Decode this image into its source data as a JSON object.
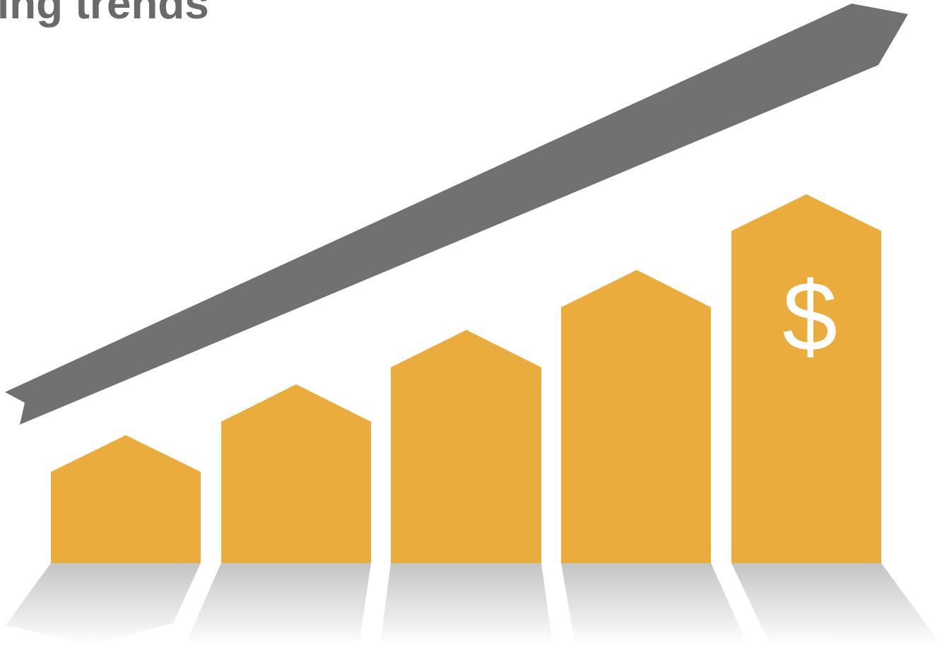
{
  "title": "ing trends",
  "icon_label": "$"
}
